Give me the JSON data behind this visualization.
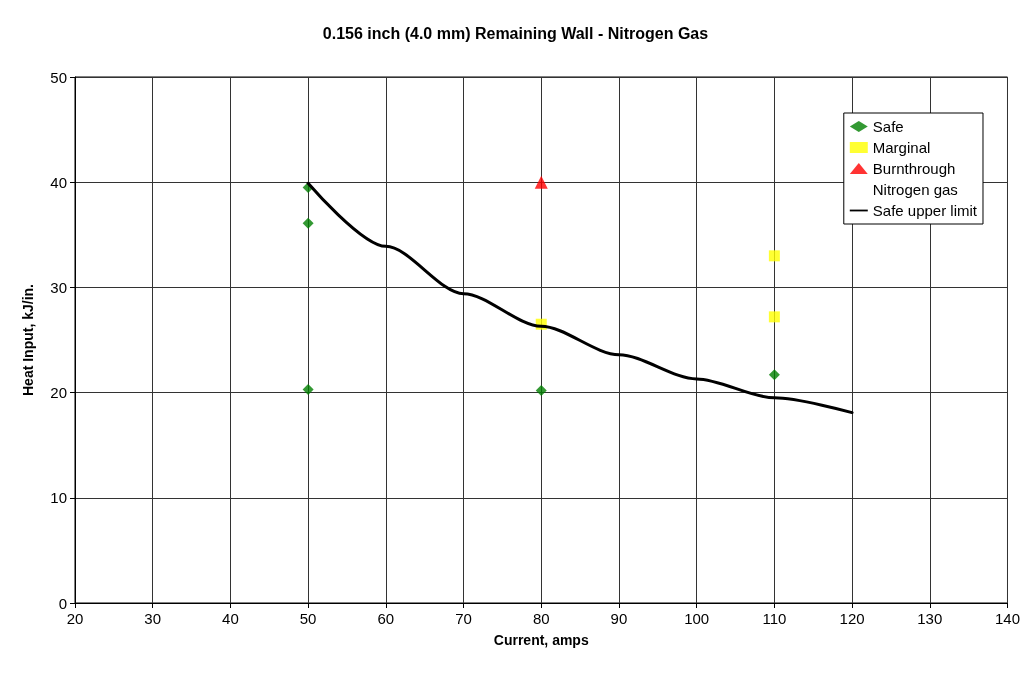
{
  "chart_data": {
    "type": "scatter",
    "title": "0.156 inch (4.0 mm) Remaining Wall - Nitrogen Gas",
    "xlabel": "Current, amps",
    "ylabel": "Heat Input, kJ/in.",
    "xlim": [
      20,
      140
    ],
    "xticks": [
      20,
      30,
      40,
      50,
      60,
      70,
      80,
      90,
      100,
      110,
      120,
      130,
      140
    ],
    "ylim": [
      0,
      50
    ],
    "yticks": [
      0,
      10,
      20,
      30,
      40,
      50
    ],
    "grid": true,
    "legend": "top right",
    "series": [
      {
        "name": "Safe",
        "color": "#008000",
        "marker": "diamond",
        "x": [
          50,
          50,
          50,
          80,
          110
        ],
        "values": [
          39.5,
          36.1,
          20.3,
          20.2,
          21.7
        ]
      },
      {
        "name": "Marginal",
        "color": "#ffff00",
        "marker": "square",
        "x": [
          80,
          110,
          110
        ],
        "values": [
          26.5,
          33,
          27.2
        ]
      },
      {
        "name": "Burnthrough",
        "color": "#ff0000",
        "marker": "triangle",
        "x": [
          80
        ],
        "values": [
          40
        ]
      },
      {
        "name": "Nitrogen gas",
        "marker": "none"
      },
      {
        "name": "Safe upper limit",
        "type": "line",
        "color": "#000000",
        "marker": "none",
        "line_style": "solid",
        "x": [
          50,
          60,
          70,
          80,
          90,
          100,
          110,
          120
        ],
        "values": [
          39.9,
          33.9,
          29.4,
          26.3,
          23.6,
          21.3,
          19.5,
          18.1
        ]
      }
    ]
  }
}
